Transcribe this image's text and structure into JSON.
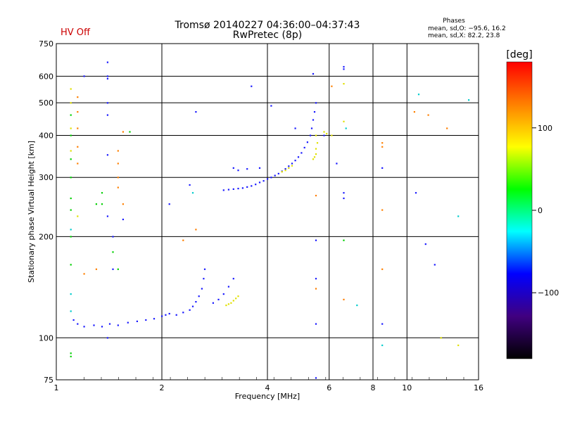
{
  "header": {
    "title": "Tromsø 20140227 04:36:00–04:37:43",
    "subtitle": "RwPretec (8p)",
    "status": "HV Off",
    "status_color": "#cc0000",
    "phase_title": "Phases",
    "phase_o": "mean, sd,O: −95.6, 16.2",
    "phase_x": "mean, sd,X:  82.2, 23.8"
  },
  "colorbar": {
    "label": "[deg]",
    "range": [
      -180,
      180
    ],
    "ticks": [
      {
        "v": 100,
        "label": "100"
      },
      {
        "v": 0,
        "label": "0"
      },
      {
        "v": -100,
        "label": "−100"
      }
    ],
    "colors": [
      "#ff0000",
      "#ff8000",
      "#ffff00",
      "#00ff00",
      "#00ffff",
      "#0000ff",
      "#400080",
      "#000000"
    ]
  },
  "chart_data": {
    "type": "scatter",
    "xlabel": "Frequency [MHz]",
    "ylabel": "Stationary phase Virtual Height [km]",
    "x_scale": "log",
    "y_scale": "log",
    "xlim": [
      1,
      16
    ],
    "ylim": [
      75,
      750
    ],
    "grid": true,
    "x_ticks": [
      {
        "v": 1,
        "label": "1"
      },
      {
        "v": 2,
        "label": "2"
      },
      {
        "v": 4,
        "label": "4"
      },
      {
        "v": 6,
        "label": "6"
      },
      {
        "v": 8,
        "label": "8"
      },
      {
        "v": 10,
        "label": "10"
      },
      {
        "v": 16,
        "label": "16"
      }
    ],
    "y_ticks": [
      {
        "v": 75,
        "label": "75"
      },
      {
        "v": 100,
        "label": "100"
      },
      {
        "v": 200,
        "label": "200"
      },
      {
        "v": 300,
        "label": "300"
      },
      {
        "v": 400,
        "label": "400"
      },
      {
        "v": 500,
        "label": "500"
      },
      {
        "v": 600,
        "label": "600"
      },
      {
        "v": 750,
        "label": "750"
      }
    ],
    "series": [
      {
        "color": "#1a1aff",
        "points": [
          [
            1.12,
            113
          ],
          [
            1.15,
            110
          ],
          [
            1.2,
            108
          ],
          [
            1.28,
            109
          ],
          [
            1.35,
            108
          ],
          [
            1.42,
            110
          ],
          [
            1.5,
            109
          ],
          [
            1.6,
            111
          ],
          [
            1.7,
            112
          ],
          [
            1.8,
            113
          ],
          [
            1.9,
            114
          ],
          [
            2.0,
            116
          ],
          [
            2.05,
            117
          ],
          [
            2.1,
            118
          ],
          [
            2.2,
            117
          ],
          [
            2.3,
            119
          ],
          [
            2.4,
            121
          ],
          [
            2.45,
            124
          ],
          [
            2.5,
            128
          ],
          [
            2.55,
            133
          ],
          [
            2.6,
            140
          ],
          [
            2.63,
            150
          ],
          [
            2.65,
            160
          ],
          [
            2.8,
            127
          ],
          [
            2.9,
            130
          ],
          [
            3.0,
            135
          ],
          [
            3.1,
            142
          ],
          [
            3.2,
            150
          ],
          [
            3.0,
            275
          ],
          [
            3.1,
            276
          ],
          [
            3.2,
            277
          ],
          [
            3.3,
            278
          ],
          [
            3.4,
            279
          ],
          [
            3.5,
            281
          ],
          [
            3.6,
            283
          ],
          [
            3.7,
            286
          ],
          [
            3.8,
            290
          ],
          [
            3.9,
            293
          ],
          [
            4.0,
            297
          ],
          [
            4.1,
            300
          ],
          [
            4.2,
            304
          ],
          [
            4.3,
            308
          ],
          [
            4.4,
            313
          ],
          [
            4.5,
            318
          ],
          [
            4.6,
            324
          ],
          [
            4.7,
            330
          ],
          [
            4.8,
            337
          ],
          [
            4.9,
            345
          ],
          [
            5.0,
            355
          ],
          [
            5.1,
            368
          ],
          [
            5.2,
            382
          ],
          [
            5.3,
            400
          ],
          [
            5.35,
            420
          ],
          [
            5.4,
            445
          ],
          [
            5.45,
            470
          ],
          [
            5.5,
            500
          ],
          [
            3.2,
            320
          ],
          [
            3.3,
            315
          ],
          [
            3.5,
            318
          ],
          [
            3.8,
            320
          ],
          [
            2.4,
            285
          ],
          [
            2.1,
            250
          ],
          [
            1.55,
            225
          ],
          [
            1.4,
            660
          ],
          [
            1.4,
            600
          ],
          [
            1.4,
            590
          ],
          [
            1.4,
            500
          ],
          [
            1.4,
            460
          ],
          [
            1.4,
            350
          ],
          [
            1.4,
            230
          ],
          [
            1.4,
            100
          ],
          [
            1.45,
            200
          ],
          [
            1.45,
            160
          ],
          [
            5.4,
            610
          ],
          [
            6.6,
            640
          ],
          [
            6.6,
            630
          ],
          [
            5.5,
            195
          ],
          [
            5.5,
            150
          ],
          [
            5.5,
            110
          ],
          [
            5.5,
            76
          ],
          [
            6.6,
            270
          ],
          [
            6.6,
            260
          ],
          [
            8.5,
            110
          ],
          [
            8.5,
            320
          ],
          [
            10.6,
            270
          ],
          [
            11.3,
            190
          ],
          [
            12.0,
            165
          ],
          [
            3.6,
            560
          ],
          [
            4.1,
            490
          ],
          [
            4.8,
            420
          ],
          [
            2.5,
            470
          ],
          [
            1.2,
            600
          ],
          [
            5.8,
            400
          ],
          [
            6.3,
            330
          ]
        ]
      },
      {
        "color": "#e0e000",
        "points": [
          [
            3.05,
            125
          ],
          [
            3.1,
            126
          ],
          [
            3.15,
            127
          ],
          [
            3.2,
            129
          ],
          [
            3.25,
            131
          ],
          [
            3.3,
            133
          ],
          [
            4.4,
            312
          ],
          [
            4.5,
            315
          ],
          [
            4.6,
            320
          ],
          [
            4.7,
            325
          ],
          [
            5.4,
            340
          ],
          [
            5.45,
            345
          ],
          [
            5.5,
            352
          ],
          [
            5.5,
            365
          ],
          [
            5.55,
            380
          ],
          [
            5.5,
            400
          ],
          [
            5.8,
            410
          ],
          [
            5.9,
            405
          ],
          [
            6.1,
            400
          ],
          [
            6.6,
            570
          ],
          [
            6.6,
            440
          ],
          [
            1.1,
            550
          ],
          [
            1.1,
            500
          ],
          [
            1.1,
            420
          ],
          [
            1.1,
            360
          ],
          [
            1.15,
            230
          ],
          [
            14.0,
            95
          ],
          [
            12.5,
            100
          ]
        ]
      },
      {
        "color": "#ff7f00",
        "points": [
          [
            1.15,
            520
          ],
          [
            1.15,
            470
          ],
          [
            1.15,
            420
          ],
          [
            1.15,
            370
          ],
          [
            1.15,
            330
          ],
          [
            1.3,
            160
          ],
          [
            1.2,
            155
          ],
          [
            1.5,
            360
          ],
          [
            1.5,
            330
          ],
          [
            1.5,
            300
          ],
          [
            1.5,
            280
          ],
          [
            1.55,
            410
          ],
          [
            1.55,
            250
          ],
          [
            8.5,
            380
          ],
          [
            8.5,
            370
          ],
          [
            8.5,
            160
          ],
          [
            8.5,
            240
          ],
          [
            10.5,
            470
          ],
          [
            11.5,
            460
          ],
          [
            13.0,
            420
          ],
          [
            5.5,
            140
          ],
          [
            5.5,
            265
          ],
          [
            6.1,
            560
          ],
          [
            2.5,
            210
          ],
          [
            2.3,
            195
          ],
          [
            6.6,
            130
          ]
        ]
      },
      {
        "color": "#00d000",
        "points": [
          [
            1.1,
            460
          ],
          [
            1.1,
            400
          ],
          [
            1.1,
            340
          ],
          [
            1.1,
            300
          ],
          [
            1.1,
            260
          ],
          [
            1.1,
            240
          ],
          [
            1.1,
            200
          ],
          [
            1.1,
            165
          ],
          [
            1.1,
            90
          ],
          [
            1.1,
            88
          ],
          [
            1.35,
            270
          ],
          [
            1.35,
            250
          ],
          [
            1.45,
            180
          ],
          [
            1.5,
            160
          ],
          [
            1.62,
            410
          ],
          [
            1.3,
            250
          ],
          [
            6.6,
            195
          ]
        ]
      },
      {
        "color": "#00cccc",
        "points": [
          [
            1.1,
            210
          ],
          [
            1.1,
            135
          ],
          [
            1.1,
            120
          ],
          [
            6.7,
            420
          ],
          [
            7.2,
            125
          ],
          [
            8.5,
            95
          ],
          [
            10.8,
            530
          ],
          [
            14.0,
            230
          ],
          [
            15.0,
            510
          ],
          [
            2.45,
            270
          ]
        ]
      }
    ]
  }
}
